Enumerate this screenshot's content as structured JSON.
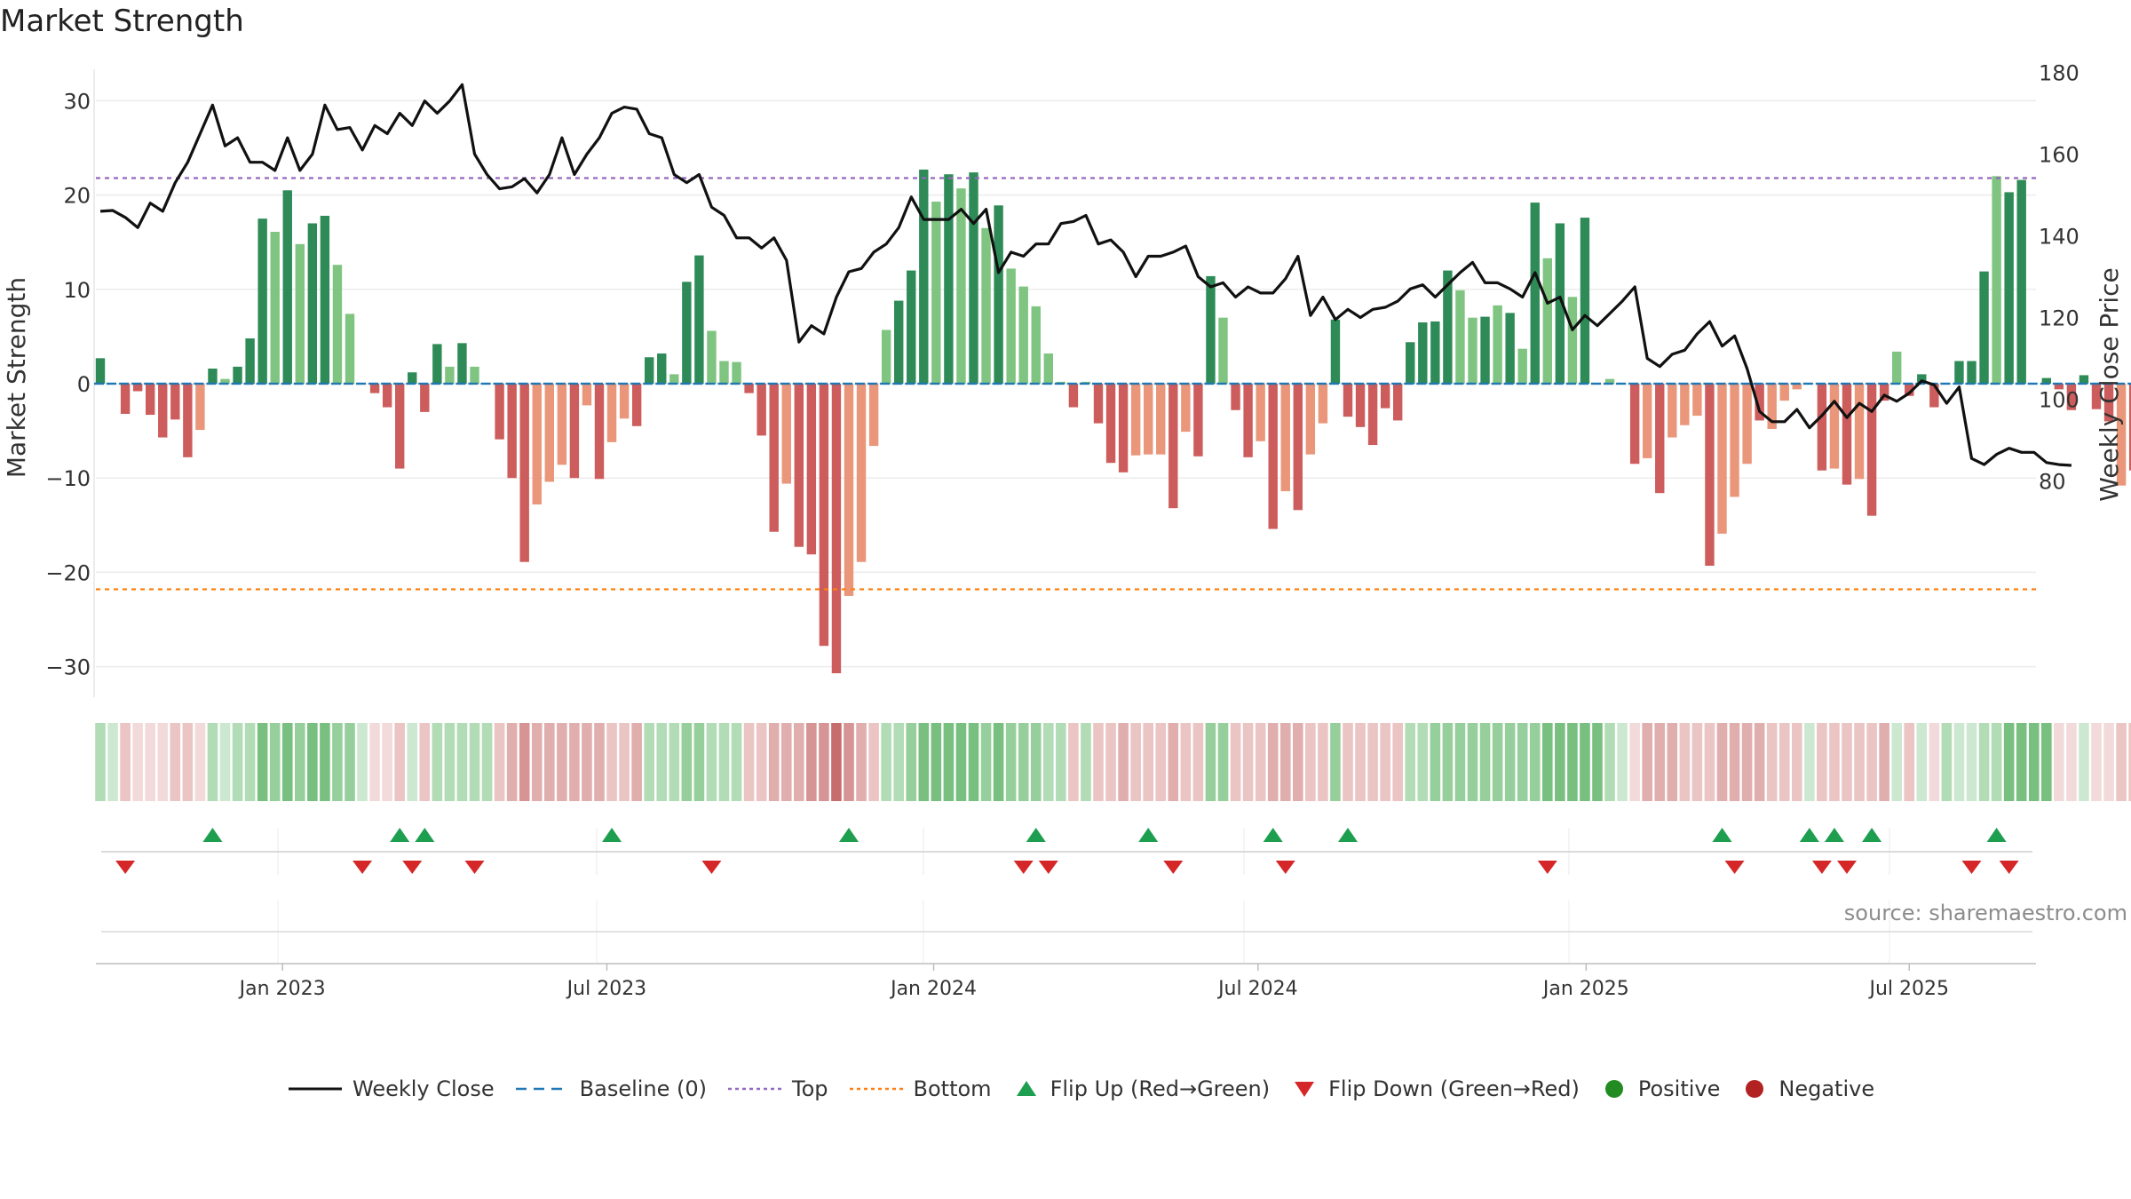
{
  "chart_data": {
    "type": "bar",
    "title": "Market Strength",
    "source": "source: sharemaestro.com",
    "y_left": {
      "label": "Market Strength",
      "range": [
        -33,
        33
      ],
      "ticks": [
        "30",
        "20",
        "10",
        "0",
        "−10",
        "−20",
        "−30"
      ],
      "tick_values": [
        30,
        20,
        10,
        0,
        -10,
        -20,
        -30
      ]
    },
    "y_right": {
      "label": "Weekly Close Price",
      "range": [
        80,
        180
      ],
      "ticks": [
        "180",
        "160",
        "140",
        "120",
        "100",
        "80"
      ],
      "tick_values": [
        180,
        160,
        140,
        120,
        100,
        80
      ]
    },
    "x_ticks": [
      {
        "label": "Jan 2023",
        "week": 14.6
      },
      {
        "label": "Jul 2023",
        "week": 40.6
      },
      {
        "label": "Jan 2024",
        "week": 66.8
      },
      {
        "label": "Jul 2024",
        "week": 92.8
      },
      {
        "label": "Jan 2025",
        "week": 119.1
      },
      {
        "label": "Jul 2025",
        "week": 145.0
      }
    ],
    "top_line": 21.8,
    "bottom_line": -21.8,
    "strength": [
      2.7,
      0,
      -3.2,
      -0.8,
      -3.3,
      -5.7,
      -3.8,
      -7.8,
      -4.9,
      1.6,
      0.5,
      1.8,
      4.8,
      17.5,
      16.1,
      20.5,
      14.8,
      17.0,
      17.8,
      12.6,
      7.4,
      0,
      -1.0,
      -2.5,
      -9.0,
      1.2,
      -3.0,
      4.2,
      1.8,
      4.3,
      1.8,
      0,
      -5.9,
      -10.0,
      -18.9,
      -12.8,
      -10.4,
      -8.6,
      -10.0,
      -2.3,
      -10.1,
      -6.2,
      -3.7,
      -4.5,
      2.8,
      3.2,
      1.0,
      10.8,
      13.6,
      5.6,
      2.4,
      2.3,
      -1.0,
      -5.5,
      -15.7,
      -10.6,
      -17.3,
      -18.1,
      -27.8,
      -30.7,
      -22.5,
      -18.9,
      -6.6,
      5.7,
      8.8,
      12.0,
      22.7,
      19.3,
      22.2,
      20.7,
      22.4,
      16.5,
      18.9,
      12.2,
      10.3,
      8.2,
      3.2,
      0.2,
      -2.5,
      0.2,
      -4.2,
      -8.4,
      -9.4,
      -7.6,
      -7.5,
      -7.5,
      -13.2,
      -5.1,
      -7.7,
      11.4,
      7.0,
      -2.8,
      -7.8,
      -6.1,
      -15.4,
      -11.4,
      -13.4,
      -7.5,
      -4.2,
      6.8,
      -3.5,
      -4.6,
      -6.5,
      -2.6,
      -3.9,
      4.4,
      6.5,
      6.6,
      12.0,
      9.9,
      7.0,
      7.1,
      8.3,
      7.5,
      3.7,
      19.2,
      13.3,
      17.0,
      9.2,
      17.6,
      0,
      0.5,
      0,
      -8.5,
      -7.9,
      -11.6,
      -5.7,
      -4.4,
      -3.4,
      -19.3,
      -15.9,
      -12.0,
      -8.5,
      -3.9,
      -4.8,
      -1.8,
      -0.6,
      0,
      -9.2,
      -9.0,
      -10.7,
      -10.1,
      -14.0,
      -1.8,
      3.4,
      -1.3,
      1.0,
      -2.5,
      0,
      2.4,
      2.4,
      11.9,
      22.0,
      20.3,
      21.6,
      0,
      0.6,
      -0.6,
      -2.8,
      0.9,
      -2.7,
      -4.0,
      -10.8,
      -9.2
    ],
    "strength_shade": [
      "d",
      "d",
      "d",
      "d",
      "d",
      "d",
      "d",
      "d",
      "l",
      "d",
      "l",
      "d",
      "d",
      "d",
      "l",
      "d",
      "l",
      "d",
      "d",
      "l",
      "l",
      "d",
      "d",
      "d",
      "d",
      "d",
      "d",
      "d",
      "l",
      "d",
      "l",
      "d",
      "d",
      "d",
      "d",
      "l",
      "l",
      "l",
      "d",
      "l",
      "d",
      "l",
      "l",
      "d",
      "d",
      "d",
      "l",
      "d",
      "d",
      "l",
      "l",
      "l",
      "d",
      "d",
      "d",
      "l",
      "d",
      "d",
      "d",
      "d",
      "l",
      "l",
      "l",
      "l",
      "d",
      "d",
      "d",
      "l",
      "d",
      "l",
      "d",
      "l",
      "d",
      "l",
      "l",
      "l",
      "l",
      "l",
      "d",
      "l",
      "d",
      "d",
      "d",
      "l",
      "l",
      "l",
      "d",
      "l",
      "d",
      "d",
      "l",
      "d",
      "d",
      "l",
      "d",
      "l",
      "d",
      "l",
      "l",
      "d",
      "d",
      "d",
      "d",
      "d",
      "d",
      "d",
      "d",
      "d",
      "d",
      "l",
      "l",
      "d",
      "l",
      "d",
      "l",
      "d",
      "l",
      "d",
      "l",
      "d",
      "d",
      "l",
      "d",
      "d",
      "l",
      "d",
      "l",
      "l",
      "l",
      "d",
      "l",
      "l",
      "l",
      "d",
      "l",
      "l",
      "l",
      "d",
      "d",
      "l",
      "d",
      "l",
      "d",
      "d",
      "l",
      "d",
      "d",
      "d",
      "d",
      "d",
      "d",
      "d",
      "l",
      "d",
      "d",
      "d",
      "d",
      "d",
      "d",
      "d",
      "d",
      "d",
      "l",
      "d",
      "l"
    ],
    "close": [
      146,
      146.2,
      144.5,
      142,
      148,
      146,
      153,
      158,
      165,
      172,
      162,
      164,
      158,
      158,
      156,
      164,
      156,
      160,
      172,
      166,
      166.5,
      161,
      167,
      165,
      170,
      167,
      173,
      170,
      173,
      177,
      160,
      155,
      151.5,
      152,
      154,
      150.5,
      155,
      164,
      155,
      160,
      164,
      170,
      171.5,
      171,
      165,
      164,
      155,
      153,
      155,
      147,
      145,
      139.5,
      139.5,
      137,
      139.5,
      134,
      114,
      118,
      116,
      125,
      131.2,
      132,
      136,
      138,
      142,
      149.5,
      144,
      144,
      144,
      146.5,
      143,
      146.5,
      131,
      136,
      135,
      138,
      138,
      143,
      143.5,
      145,
      138,
      139,
      136,
      130,
      135,
      135,
      136,
      137.5,
      130,
      127.5,
      128.5,
      125,
      127.5,
      126,
      126,
      129.5,
      135,
      120.5,
      125,
      119.5,
      122,
      120,
      122,
      122.5,
      124,
      127,
      128,
      125,
      128,
      131,
      133.5,
      128.5,
      128.5,
      127,
      125,
      131,
      123.5,
      125,
      117,
      120.5,
      118,
      121,
      124,
      127.5,
      110,
      108,
      111,
      112,
      116,
      119,
      113,
      115.5,
      107.5,
      97,
      94.5,
      94.5,
      97.5,
      93,
      96,
      99.5,
      95.5,
      99,
      97,
      101,
      99.5,
      101.5,
      104.5,
      103.5,
      99,
      103,
      85.5,
      84,
      86.5,
      88,
      87,
      87,
      84.5,
      84,
      83.8
    ],
    "strip_level": [
      2,
      1,
      2,
      1,
      1,
      1,
      2,
      2,
      1,
      2,
      1,
      2,
      2,
      4,
      3,
      4,
      3,
      4,
      4,
      3,
      3,
      1,
      1,
      1,
      2,
      1,
      2,
      2,
      2,
      2,
      2,
      2,
      2,
      3,
      4,
      3,
      3,
      3,
      3,
      3,
      3,
      2,
      2,
      3,
      2,
      2,
      2,
      3,
      3,
      2,
      2,
      2,
      2,
      2,
      3,
      3,
      3,
      4,
      4,
      5,
      4,
      3,
      2,
      2,
      2,
      3,
      4,
      4,
      4,
      4,
      4,
      3,
      4,
      3,
      3,
      3,
      2,
      2,
      2,
      2,
      2,
      2,
      3,
      2,
      2,
      2,
      3,
      2,
      2,
      3,
      3,
      2,
      2,
      2,
      3,
      3,
      3,
      2,
      2,
      3,
      2,
      2,
      2,
      2,
      2,
      2,
      2,
      3,
      3,
      3,
      3,
      3,
      3,
      3,
      3,
      3,
      4,
      4,
      4,
      4,
      4,
      2,
      1,
      1,
      3,
      3,
      3,
      2,
      2,
      2,
      3,
      3,
      3,
      3,
      2,
      2,
      2,
      1,
      2,
      2,
      2,
      2,
      2,
      3,
      1,
      2,
      1,
      1,
      2,
      1,
      1,
      2,
      2,
      4,
      4,
      4,
      4,
      1,
      1,
      1,
      1,
      1,
      2,
      2,
      3,
      2
    ],
    "flip_up": [
      9,
      24,
      26,
      41,
      60,
      75,
      84,
      94,
      100,
      130,
      137,
      139,
      142,
      152
    ],
    "flip_down": [
      2,
      21,
      25,
      30,
      49,
      74,
      76,
      86,
      95,
      116,
      131,
      138,
      140,
      150,
      153
    ],
    "series_colors": {
      "pos_dark": "#2e8b57",
      "pos_light": "#7fc480",
      "neg_dark": "#cd5c5c",
      "neg_light": "#e9967a",
      "close": "#111111",
      "baseline": "#1f77b4",
      "top": "#9467bd",
      "bottom": "#ff7f0e",
      "flip_up": "#1e9e4f",
      "flip_down": "#d62728",
      "positive_marker": "#228b22",
      "negative_marker": "#b22222"
    },
    "legend": [
      {
        "key": "close",
        "label": "Weekly Close"
      },
      {
        "key": "baseline",
        "label": "Baseline (0)"
      },
      {
        "key": "top",
        "label": "Top"
      },
      {
        "key": "bottom",
        "label": "Bottom"
      },
      {
        "key": "flip_up",
        "label": "Flip Up (Red→Green)"
      },
      {
        "key": "flip_down",
        "label": "Flip Down (Green→Red)"
      },
      {
        "key": "positive",
        "label": "Positive"
      },
      {
        "key": "negative",
        "label": "Negative"
      }
    ]
  }
}
